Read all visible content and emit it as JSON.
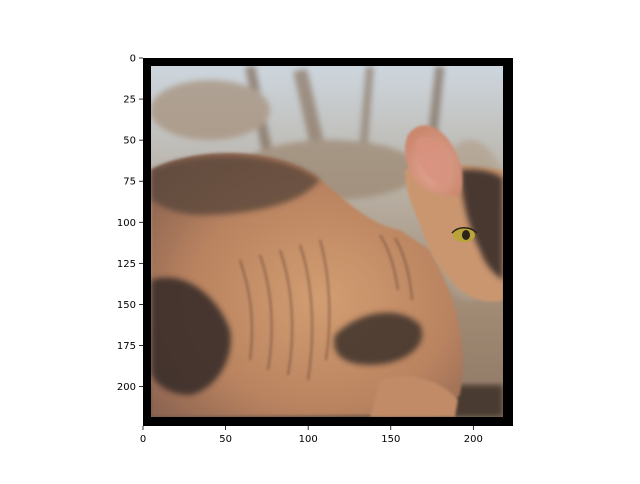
{
  "chart_data": {
    "type": "image",
    "subject": "hairless sphynx cat lying down, head turned to the right, yellow eye, blurred outdoor background",
    "x_range": [
      0,
      224
    ],
    "y_range": [
      224,
      0
    ],
    "x_ticks": [
      0,
      50,
      100,
      150,
      200
    ],
    "y_ticks": [
      0,
      25,
      50,
      75,
      100,
      125,
      150,
      175,
      200
    ],
    "x_tick_labels": [
      "0",
      "50",
      "100",
      "150",
      "200"
    ],
    "y_tick_labels": [
      "0",
      "25",
      "50",
      "75",
      "100",
      "125",
      "150",
      "175",
      "200"
    ],
    "grid": false
  },
  "colors": {
    "frame": "#000000",
    "sky_top": "#c9d3dc",
    "background_brown": "#9a8066",
    "skin_peach": "#c9936a",
    "skin_dark": "#3b2f29",
    "eye_yellow": "#b9a43a",
    "ear_pink": "#d99b8c"
  }
}
